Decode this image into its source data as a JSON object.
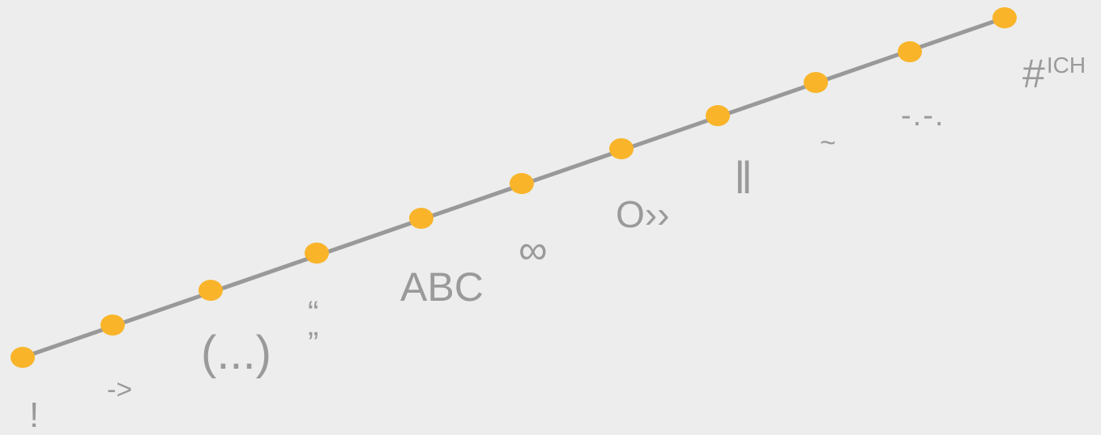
{
  "colors": {
    "background": "#ecedec",
    "line": "#999999",
    "marker": "#f9b42a",
    "text": "#9a9a9a"
  },
  "glyphs": [
    {
      "id": "g0",
      "text": "!"
    },
    {
      "id": "g1",
      "text": "->"
    },
    {
      "id": "g2",
      "text": "(...)"
    },
    {
      "id": "g3",
      "open": "“",
      "close": "”"
    },
    {
      "id": "g4",
      "text": "ABC"
    },
    {
      "id": "g5",
      "text": "∞"
    },
    {
      "id": "g6",
      "text": "O››"
    },
    {
      "id": "g7",
      "text": "‖"
    },
    {
      "id": "g8",
      "text": "~"
    },
    {
      "id": "g9",
      "text": "-.-."
    },
    {
      "id": "g10",
      "text": "#",
      "sup": "ICH"
    }
  ],
  "marker_count": 11
}
